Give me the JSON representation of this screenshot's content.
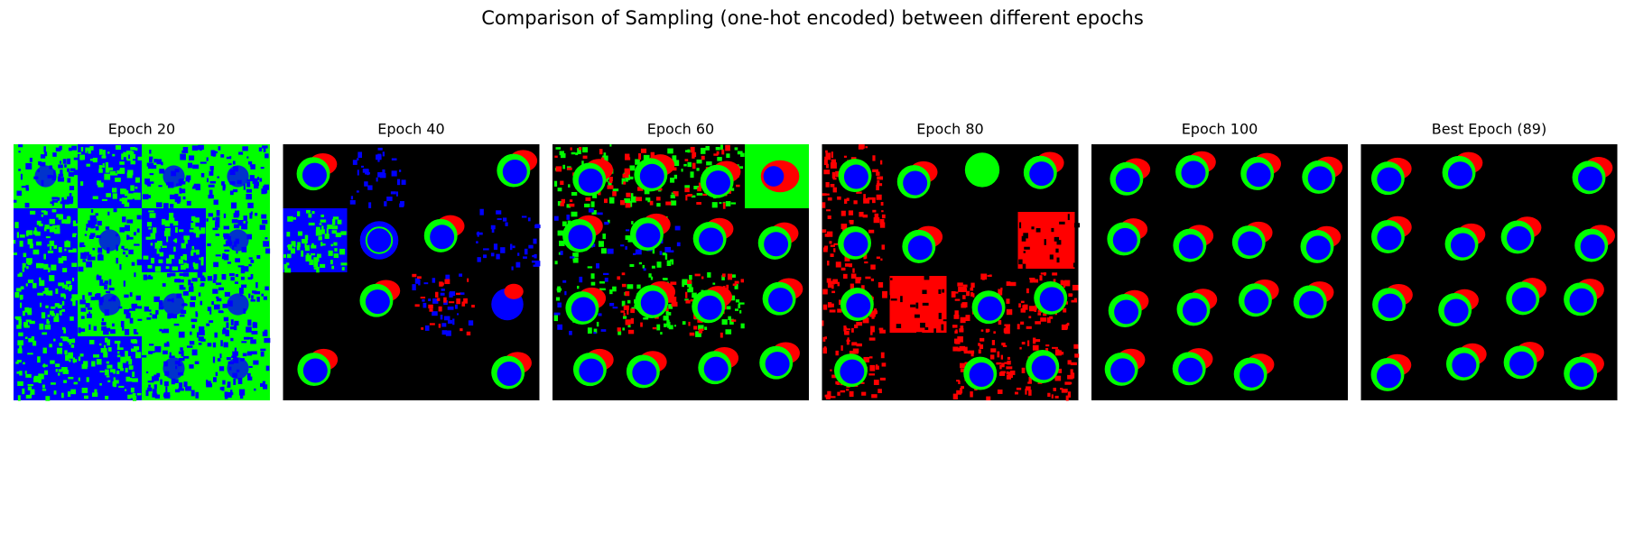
{
  "title": "Comparison of Sampling (one-hot encoded) between different epochs",
  "panels": [
    {
      "title": "Epoch 20"
    },
    {
      "title": "Epoch 40"
    },
    {
      "title": "Epoch 60"
    },
    {
      "title": "Epoch 80"
    },
    {
      "title": "Epoch 100"
    },
    {
      "title": "Best Epoch (89)"
    }
  ]
}
